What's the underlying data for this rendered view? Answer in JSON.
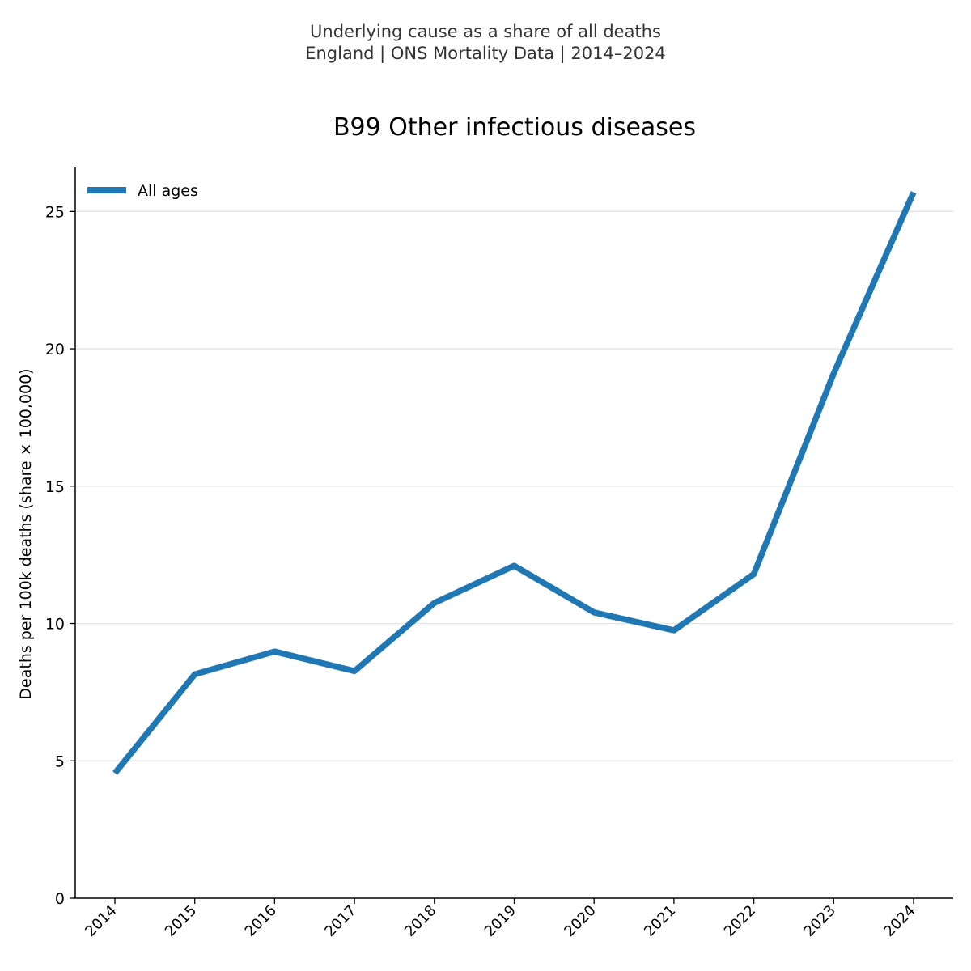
{
  "header": {
    "line1": "Underlying cause as a share of all deaths",
    "line2": "England | ONS Mortality Data | 2014–2024"
  },
  "chart_data": {
    "type": "line",
    "title": "B99 Other infectious diseases",
    "xlabel": "",
    "ylabel": "Deaths per 100k deaths (share × 100,000)",
    "categories": [
      "2014",
      "2015",
      "2016",
      "2017",
      "2018",
      "2019",
      "2020",
      "2021",
      "2022",
      "2023",
      "2024"
    ],
    "series": [
      {
        "name": "All ages",
        "color": "#1f77b4",
        "values": [
          4.55,
          8.15,
          8.98,
          8.27,
          10.75,
          12.1,
          10.4,
          9.75,
          11.8,
          19.1,
          25.7
        ]
      }
    ],
    "ylim": [
      0,
      26.6
    ],
    "yticks": [
      0,
      5,
      10,
      15,
      20,
      25
    ],
    "grid": "horizontal",
    "legend": "top-left"
  }
}
